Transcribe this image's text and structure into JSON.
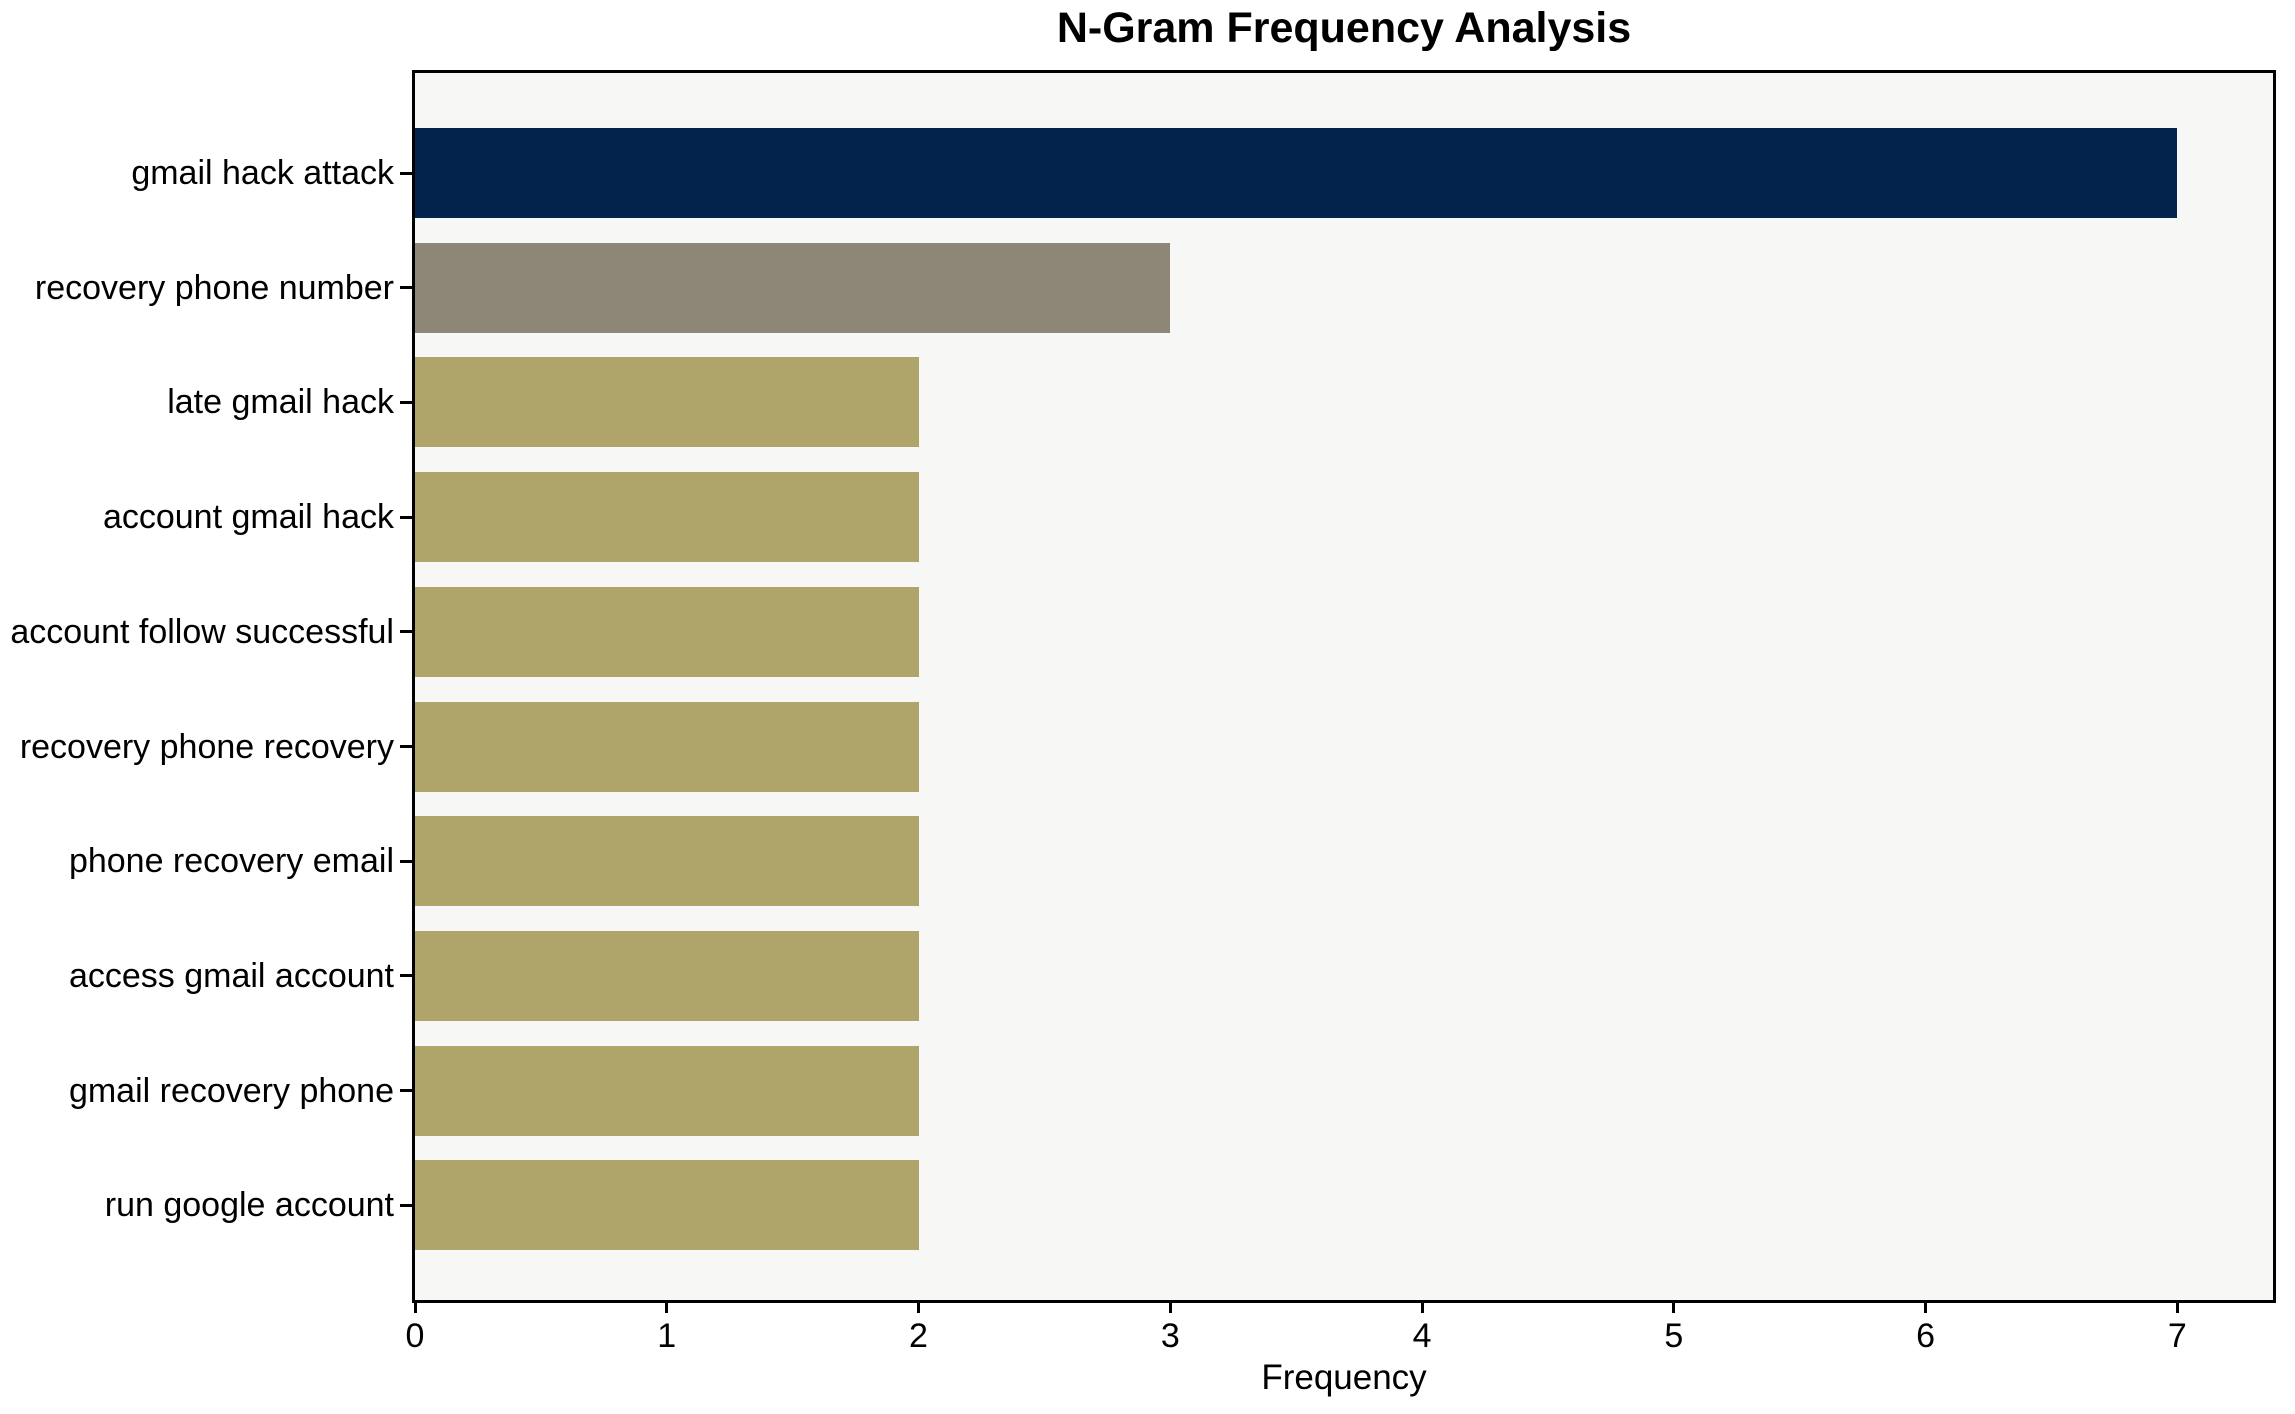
{
  "chart_data": {
    "type": "bar",
    "orientation": "horizontal",
    "title": "N-Gram Frequency Analysis",
    "xlabel": "Frequency",
    "ylabel": "",
    "categories": [
      "gmail hack attack",
      "recovery phone number",
      "late gmail hack",
      "account gmail hack",
      "account follow successful",
      "recovery phone recovery",
      "phone recovery email",
      "access gmail account",
      "gmail recovery phone",
      "run google account"
    ],
    "values": [
      7,
      3,
      2,
      2,
      2,
      2,
      2,
      2,
      2,
      2
    ],
    "bar_colors": [
      "#03234d",
      "#8e8778",
      "#afa56a",
      "#afa56a",
      "#afa56a",
      "#afa56a",
      "#afa56a",
      "#afa56a",
      "#afa56a",
      "#afa56a"
    ],
    "x_ticks": [
      "0",
      "1",
      "2",
      "3",
      "4",
      "5",
      "6",
      "7"
    ],
    "xlim": [
      0,
      7.38
    ],
    "grid": false,
    "legend": false,
    "colors": {
      "plot_background": "#f7f7f6",
      "page_background": "#ffffff",
      "spine": "#000000",
      "text": "#000000"
    }
  }
}
